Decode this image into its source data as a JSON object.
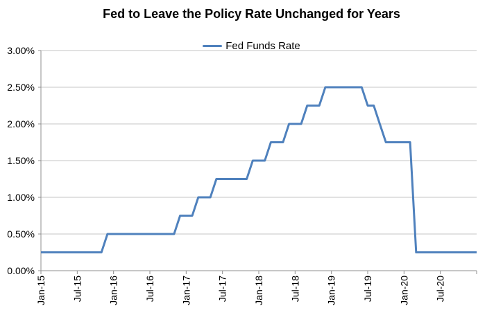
{
  "title": "Fed to Leave the Policy Rate Unchanged for Years",
  "legend": {
    "label": "Fed Funds Rate"
  },
  "colors": {
    "line": "#4F81BD",
    "gridline": "#C4C4C4",
    "axis": "#8F8F8F",
    "text": "#000000",
    "background": "#FFFFFF"
  },
  "chart_data": {
    "type": "line",
    "title": "Fed to Leave the Policy Rate Unchanged for Years",
    "xlabel": "",
    "ylabel": "",
    "legend_entries": [
      "Fed Funds Rate"
    ],
    "legend_position": "top-center",
    "grid": true,
    "x_start": "Jan-2015",
    "x_end": "Jan-2021",
    "x_interval": "monthly",
    "x_tick_labels": [
      "Jan-15",
      "Jul-15",
      "Jan-16",
      "Jul-16",
      "Jan-17",
      "Jul-17",
      "Jan-18",
      "Jul-18",
      "Jan-19",
      "Jul-19",
      "Jan-20",
      "Jul-20"
    ],
    "x_tick_every_months": 6,
    "y_tick_labels": [
      "0.00%",
      "0.50%",
      "1.00%",
      "1.50%",
      "2.00%",
      "2.50%",
      "3.00%"
    ],
    "ylim": [
      0,
      3
    ],
    "y_unit": "percent",
    "series": [
      {
        "name": "Fed Funds Rate",
        "values": [
          0.25,
          0.25,
          0.25,
          0.25,
          0.25,
          0.25,
          0.25,
          0.25,
          0.25,
          0.25,
          0.25,
          0.5,
          0.5,
          0.5,
          0.5,
          0.5,
          0.5,
          0.5,
          0.5,
          0.5,
          0.5,
          0.5,
          0.5,
          0.75,
          0.75,
          0.75,
          1.0,
          1.0,
          1.0,
          1.25,
          1.25,
          1.25,
          1.25,
          1.25,
          1.25,
          1.5,
          1.5,
          1.5,
          1.75,
          1.75,
          1.75,
          2.0,
          2.0,
          2.0,
          2.25,
          2.25,
          2.25,
          2.5,
          2.5,
          2.5,
          2.5,
          2.5,
          2.5,
          2.5,
          2.25,
          2.25,
          2.0,
          1.75,
          1.75,
          1.75,
          1.75,
          1.75,
          0.25,
          0.25,
          0.25,
          0.25,
          0.25,
          0.25,
          0.25,
          0.25,
          0.25,
          0.25,
          0.25
        ]
      }
    ]
  }
}
